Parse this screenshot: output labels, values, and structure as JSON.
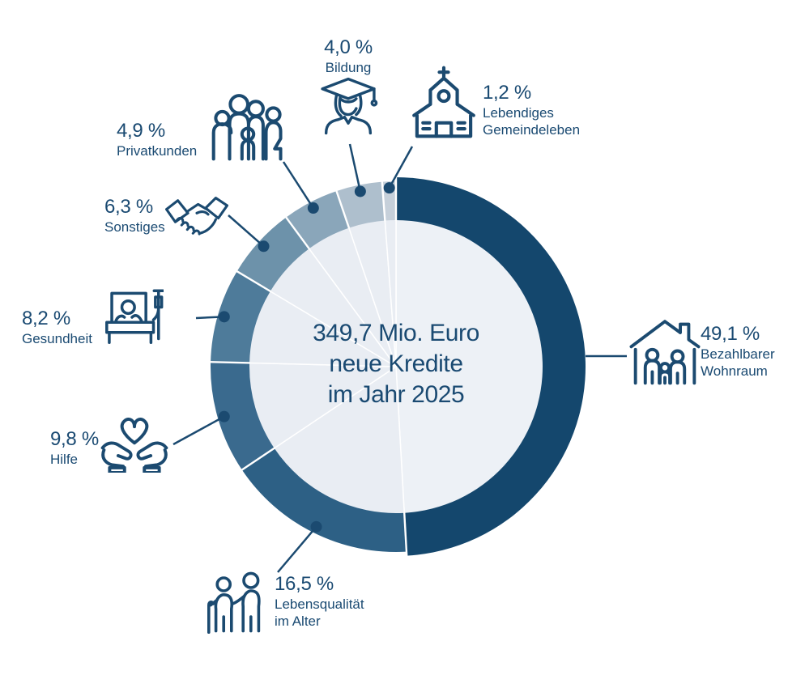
{
  "background_color": "#ffffff",
  "accent_color": "#1b4a70",
  "text_color": "#1a4a72",
  "center": {
    "line1": "349,7 Mio. Euro",
    "line2": "neue Kredite",
    "line3": "im Jahr 2025"
  },
  "chart_data": {
    "type": "pie",
    "subtype": "donut",
    "title": "349,7 Mio. Euro neue Kredite im Jahr 2025",
    "unit": "%",
    "start_angle_deg": 0,
    "direction": "clockwise",
    "legend_position": "around",
    "inner_circle_color": "#e9edf3",
    "segments": [
      {
        "label": "Bezahlbarer Wohnraum",
        "value": 49.1,
        "display": "49,1 %",
        "color": "#14476d",
        "inner_color": "#edf1f6",
        "emphasized": true
      },
      {
        "label": "Lebensqualität im Alter",
        "value": 16.5,
        "display": "16,5 %",
        "color": "#2d6085",
        "inner_color": "#e9edf3",
        "emphasized": false
      },
      {
        "label": "Hilfe",
        "value": 9.8,
        "display": "9,8 %",
        "color": "#3a6a8e",
        "inner_color": "#e9edf3",
        "emphasized": false
      },
      {
        "label": "Gesundheit",
        "value": 8.2,
        "display": "8,2 %",
        "color": "#4e7b9a",
        "inner_color": "#e9edf3",
        "emphasized": false
      },
      {
        "label": "Sonstiges",
        "value": 6.3,
        "display": "6,3 %",
        "color": "#6d92aa",
        "inner_color": "#e9edf3",
        "emphasized": false
      },
      {
        "label": "Privatkunden",
        "value": 4.9,
        "display": "4,9 %",
        "color": "#8aa6ba",
        "inner_color": "#e9edf3",
        "emphasized": false
      },
      {
        "label": "Bildung",
        "value": 4.0,
        "display": "4,0 %",
        "color": "#aebfcd",
        "inner_color": "#e9edf3",
        "emphasized": false
      },
      {
        "label": "Lebendiges Gemeindeleben",
        "value": 1.2,
        "display": "1,2 %",
        "color": "#c6d0da",
        "inner_color": "#e9edf3",
        "emphasized": false
      }
    ]
  },
  "callouts": {
    "wohnraum": {
      "pct": "49,1 %",
      "name": "Bezahlbarer\nWohnraum",
      "icon": "house-family-icon"
    },
    "lebensqualitaet": {
      "pct": "16,5 %",
      "name": "Lebensqualität\nim Alter",
      "icon": "elderly-couple-icon"
    },
    "hilfe": {
      "pct": "9,8 %",
      "name": "Hilfe",
      "icon": "heart-in-hands-icon"
    },
    "gesundheit": {
      "pct": "8,2 %",
      "name": "Gesundheit",
      "icon": "hospital-bed-icon"
    },
    "sonstiges": {
      "pct": "6,3 %",
      "name": "Sonstiges",
      "icon": "handshake-icon"
    },
    "privatkunden": {
      "pct": "4,9 %",
      "name": "Privatkunden",
      "icon": "family-group-icon"
    },
    "bildung": {
      "pct": "4,0 %",
      "name": "Bildung",
      "icon": "graduate-icon"
    },
    "gemeindeleben": {
      "pct": "1,2 %",
      "name": "Lebendiges\nGemeindeleben",
      "icon": "church-icon"
    }
  }
}
